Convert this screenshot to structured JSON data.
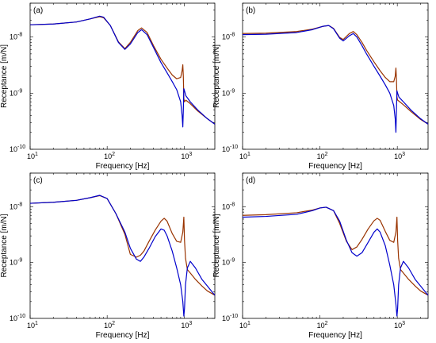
{
  "chart_data": [
    {
      "type": "line",
      "panel_label": "(a)",
      "xlabel": "Frequency [Hz]",
      "ylabel": "Receptance [m/N]",
      "xscale": "log",
      "yscale": "log",
      "xlim": [
        10,
        2500
      ],
      "ylim": [
        1e-10,
        4e-08
      ],
      "grid": false,
      "x_ticks": [
        10,
        100,
        1000
      ],
      "y_ticks": [
        1e-10,
        1e-09,
        1e-08
      ],
      "series": [
        {
          "color": "#0000cc",
          "x": [
            10,
            20,
            40,
            60,
            80,
            90,
            110,
            140,
            170,
            200,
            250,
            280,
            330,
            400,
            500,
            600,
            700,
            800,
            900,
            940,
            960,
            975,
            990,
            1010,
            1050,
            1200,
            1500,
            2000,
            2500
          ],
          "y": [
            1.65e-08,
            1.7e-08,
            1.85e-08,
            2.1e-08,
            2.35e-08,
            2.25e-08,
            1.6e-08,
            8e-09,
            6e-09,
            7.5e-09,
            1.2e-08,
            1.35e-08,
            1.1e-08,
            6.5e-09,
            3.5e-09,
            2.3e-09,
            1.6e-09,
            1.15e-09,
            7e-10,
            4e-10,
            2.5e-10,
            5e-10,
            1.2e-09,
            1.1e-09,
            9e-10,
            7e-10,
            5e-10,
            3.5e-10,
            2.8e-10
          ]
        },
        {
          "color": "#993300",
          "x": [
            10,
            20,
            40,
            60,
            80,
            90,
            110,
            140,
            170,
            200,
            250,
            280,
            330,
            400,
            500,
            600,
            700,
            800,
            900,
            940,
            960,
            975,
            990,
            1010,
            1050,
            1200,
            1500,
            2000,
            2500
          ],
          "y": [
            1.65e-08,
            1.7e-08,
            1.85e-08,
            2.1e-08,
            2.3e-08,
            2.2e-08,
            1.6e-08,
            8.2e-09,
            6.2e-09,
            8e-09,
            1.3e-08,
            1.45e-08,
            1.2e-08,
            7e-09,
            4e-09,
            2.8e-09,
            2.1e-09,
            1.8e-09,
            1.9e-09,
            2.5e-09,
            3.2e-09,
            2e-09,
            8e-10,
            7e-10,
            7.5e-10,
            6.5e-10,
            4.8e-10,
            3.5e-10,
            2.8e-10
          ]
        }
      ]
    },
    {
      "type": "line",
      "panel_label": "(b)",
      "xlabel": "Frequency [Hz]",
      "ylabel": "Receptance [m/N]",
      "xscale": "log",
      "yscale": "log",
      "xlim": [
        10,
        2500
      ],
      "ylim": [
        1e-10,
        4e-08
      ],
      "grid": false,
      "x_ticks": [
        10,
        100,
        1000
      ],
      "y_ticks": [
        1e-10,
        1e-09,
        1e-08
      ],
      "series": [
        {
          "color": "#0000cc",
          "x": [
            10,
            20,
            50,
            80,
            110,
            130,
            150,
            180,
            200,
            240,
            270,
            300,
            350,
            400,
            500,
            600,
            700,
            800,
            900,
            940,
            960,
            975,
            990,
            1010,
            1050,
            1200,
            1500,
            2000,
            2500
          ],
          "y": [
            1.1e-08,
            1.12e-08,
            1.2e-08,
            1.35e-08,
            1.55e-08,
            1.6e-08,
            1.4e-08,
            9.5e-09,
            8.5e-09,
            1.05e-08,
            1.15e-08,
            1e-08,
            7e-09,
            5e-09,
            3e-09,
            2e-09,
            1.4e-09,
            1e-09,
            6e-10,
            3.5e-10,
            2e-10,
            5e-10,
            1.1e-09,
            1e-09,
            8.5e-10,
            7e-10,
            5e-10,
            3.5e-10,
            2.8e-10
          ]
        },
        {
          "color": "#993300",
          "x": [
            10,
            20,
            50,
            80,
            110,
            130,
            150,
            180,
            200,
            240,
            270,
            300,
            350,
            400,
            500,
            600,
            700,
            800,
            900,
            940,
            960,
            975,
            990,
            1010,
            1050,
            1200,
            1500,
            2000,
            2500
          ],
          "y": [
            1.15e-08,
            1.17e-08,
            1.25e-08,
            1.38e-08,
            1.55e-08,
            1.6e-08,
            1.42e-08,
            9.8e-09,
            9e-09,
            1.15e-08,
            1.25e-08,
            1.1e-08,
            8e-09,
            5.8e-09,
            3.6e-09,
            2.5e-09,
            1.9e-09,
            1.6e-09,
            1.6e-09,
            2e-09,
            2.8e-09,
            1.8e-09,
            8.5e-10,
            7.5e-10,
            7.2e-10,
            6.2e-10,
            4.7e-10,
            3.4e-10,
            2.8e-10
          ]
        }
      ]
    },
    {
      "type": "line",
      "panel_label": "(c)",
      "xlabel": "Frequency [Hz]",
      "ylabel": "Receptance [m/N]",
      "xscale": "log",
      "yscale": "log",
      "xlim": [
        10,
        2500
      ],
      "ylim": [
        1e-10,
        4e-08
      ],
      "grid": false,
      "x_ticks": [
        10,
        100,
        1000
      ],
      "y_ticks": [
        1e-10,
        1e-09,
        1e-08
      ],
      "series": [
        {
          "color": "#0000cc",
          "x": [
            10,
            20,
            40,
            60,
            80,
            100,
            130,
            170,
            200,
            240,
            270,
            300,
            350,
            420,
            500,
            550,
            600,
            700,
            800,
            900,
            960,
            990,
            1010,
            1040,
            1100,
            1200,
            1400,
            1700,
            2000,
            2500
          ],
          "y": [
            1.15e-08,
            1.2e-08,
            1.3e-08,
            1.45e-08,
            1.6e-08,
            1.4e-08,
            7.5e-09,
            3.5e-09,
            1.8e-09,
            1.15e-09,
            1.05e-09,
            1.25e-09,
            1.8e-09,
            2.9e-09,
            4e-09,
            3.8e-09,
            3e-09,
            1.6e-09,
            8e-10,
            4e-10,
            2e-10,
            1.1e-10,
            1.5e-10,
            4e-10,
            8e-10,
            1.05e-09,
            8e-10,
            5e-10,
            3.8e-10,
            2.6e-10
          ]
        },
        {
          "color": "#993300",
          "x": [
            10,
            20,
            40,
            60,
            80,
            100,
            130,
            170,
            200,
            240,
            270,
            300,
            350,
            420,
            500,
            550,
            600,
            700,
            800,
            900,
            960,
            990,
            1010,
            1040,
            1100,
            1200,
            1400,
            1700,
            2000,
            2500
          ],
          "y": [
            1.15e-08,
            1.2e-08,
            1.3e-08,
            1.45e-08,
            1.58e-08,
            1.4e-08,
            7.5e-09,
            3.2e-09,
            1.4e-09,
            1.25e-09,
            1.35e-09,
            1.6e-09,
            2.4e-09,
            3.8e-09,
            5.5e-09,
            6.2e-09,
            5.5e-09,
            3.3e-09,
            2.4e-09,
            2.3e-09,
            3.5e-09,
            6.5e-09,
            2.5e-09,
            1.2e-09,
            7.5e-10,
            6.5e-10,
            5e-10,
            3.8e-10,
            3.1e-10,
            2.6e-10
          ]
        }
      ]
    },
    {
      "type": "line",
      "panel_label": "(d)",
      "xlabel": "Frequency [Hz]",
      "ylabel": "Receptance [m/N]",
      "xscale": "log",
      "yscale": "log",
      "xlim": [
        10,
        2500
      ],
      "ylim": [
        1e-10,
        4e-08
      ],
      "grid": false,
      "x_ticks": [
        10,
        100,
        1000
      ],
      "y_ticks": [
        1e-10,
        1e-09,
        1e-08
      ],
      "series": [
        {
          "color": "#0000cc",
          "x": [
            10,
            20,
            50,
            80,
            100,
            120,
            150,
            180,
            220,
            260,
            300,
            350,
            420,
            500,
            550,
            600,
            700,
            800,
            900,
            960,
            990,
            1010,
            1040,
            1100,
            1200,
            1400,
            1700,
            2000,
            2500
          ],
          "y": [
            6.5e-09,
            6.7e-09,
            7.3e-09,
            8.5e-09,
            9.5e-09,
            9.8e-09,
            8.5e-09,
            5.5e-09,
            2.5e-09,
            1.5e-09,
            1.3e-09,
            1.5e-09,
            2.3e-09,
            3.5e-09,
            4e-09,
            3.5e-09,
            2e-09,
            9e-10,
            4e-10,
            1.8e-10,
            1.1e-10,
            1.5e-10,
            4e-10,
            8e-10,
            1.05e-09,
            8e-10,
            5e-10,
            3.8e-10,
            2.6e-10
          ]
        },
        {
          "color": "#993300",
          "x": [
            10,
            20,
            50,
            80,
            100,
            120,
            150,
            180,
            220,
            260,
            300,
            350,
            420,
            500,
            550,
            600,
            700,
            800,
            900,
            960,
            990,
            1010,
            1040,
            1100,
            1200,
            1400,
            1700,
            2000,
            2500
          ],
          "y": [
            7e-09,
            7.2e-09,
            7.8e-09,
            8.7e-09,
            9.5e-09,
            9.8e-09,
            8.5e-09,
            5e-09,
            2.4e-09,
            1.7e-09,
            1.9e-09,
            2.6e-09,
            4e-09,
            5.6e-09,
            6.2e-09,
            5.7e-09,
            3.6e-09,
            2.5e-09,
            2.3e-09,
            3.5e-09,
            6.5e-09,
            2.5e-09,
            1.2e-09,
            7.5e-10,
            6.5e-10,
            5e-10,
            3.8e-10,
            3.1e-10,
            2.6e-10
          ]
        }
      ]
    }
  ]
}
